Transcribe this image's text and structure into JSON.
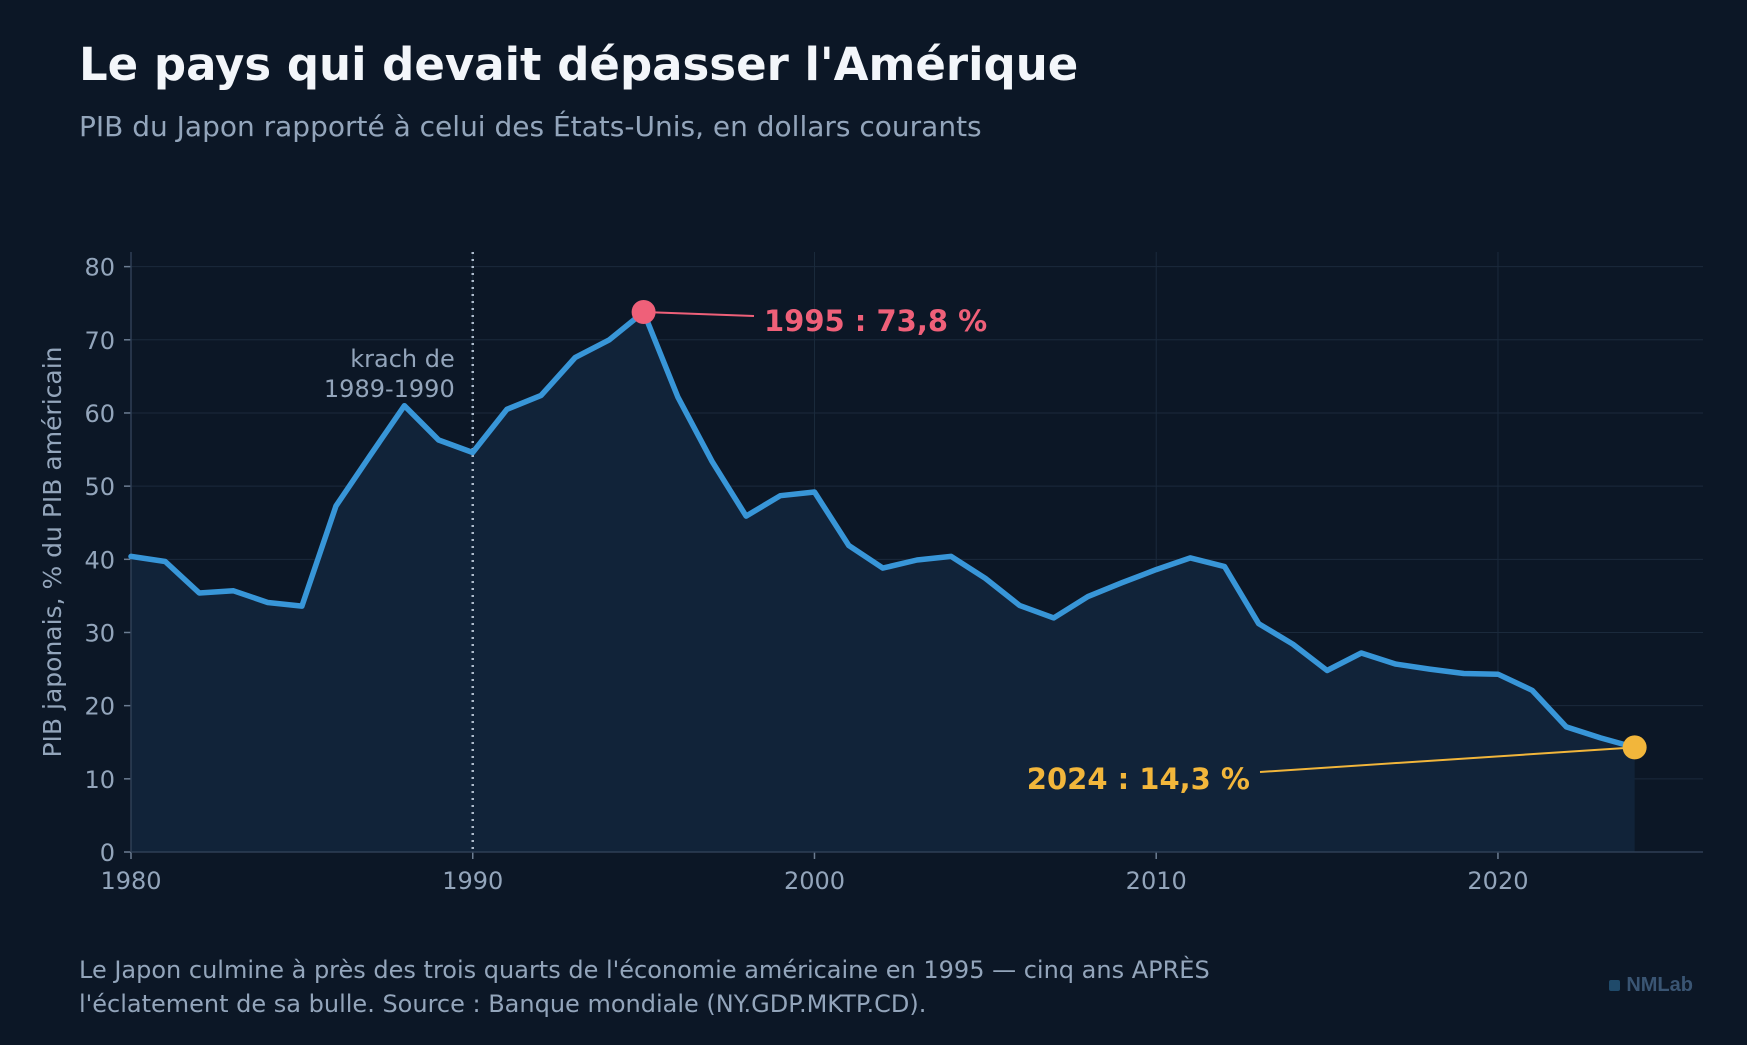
{
  "header": {
    "title": "Le pays qui devait dépasser l'Amérique",
    "subtitle": "PIB du Japon rapporté à celui des États-Unis, en dollars courants"
  },
  "footer": {
    "caption_line1": "Le Japon culmine à près des trois quarts de l'économie américaine en 1995 — cinq ans APRÈS",
    "caption_line2": "l'éclatement de sa bulle. Source : Banque mondiale (NY.GDP.MKTP.CD).",
    "brand": "NMLab"
  },
  "colors": {
    "background": "#0c1726",
    "line": "#3896d8",
    "area": "#112339",
    "grid": "#1b2a3c",
    "peak": "#ef6079",
    "latest": "#f2b63b",
    "text_muted": "#93a5bb"
  },
  "chart_data": {
    "type": "line",
    "ylabel": "PIB japonais, % du PIB américain",
    "xlabel": "",
    "xlim": [
      1980,
      2026
    ],
    "ylim": [
      0,
      82
    ],
    "x_ticks": [
      1980,
      1990,
      2000,
      2010,
      2020
    ],
    "y_ticks": [
      0,
      10,
      20,
      30,
      40,
      50,
      60,
      70,
      80
    ],
    "grid": true,
    "series": [
      {
        "x": [
          1980,
          1981,
          1982,
          1983,
          1984,
          1985,
          1986,
          1987,
          1988,
          1989,
          1990,
          1991,
          1992,
          1993,
          1994,
          1995,
          1996,
          1997,
          1998,
          1999,
          2000,
          2001,
          2002,
          2003,
          2004,
          2005,
          2006,
          2007,
          2008,
          2009,
          2010,
          2011,
          2012,
          2013,
          2014,
          2015,
          2016,
          2017,
          2018,
          2019,
          2020,
          2021,
          2022,
          2023,
          2024
        ],
        "y": [
          40.4,
          39.7,
          35.4,
          35.7,
          34.1,
          33.6,
          47.3,
          54.2,
          61.0,
          56.3,
          54.6,
          60.5,
          62.4,
          67.6,
          70.0,
          73.8,
          62.2,
          53.4,
          45.9,
          48.7,
          49.2,
          41.9,
          38.8,
          39.9,
          40.4,
          37.4,
          33.7,
          32.0,
          34.9,
          36.8,
          38.6,
          40.2,
          39.0,
          31.2,
          28.4,
          24.8,
          27.2,
          25.7,
          25.0,
          24.4,
          24.3,
          22.1,
          17.1,
          15.6,
          14.3
        ]
      }
    ],
    "annotations": [
      {
        "id": "crash",
        "x": 1990,
        "line1": "krach de",
        "line2": "1989-1990"
      },
      {
        "id": "peak",
        "x": 1995,
        "y": 73.8,
        "label": "1995 : 73,8 %"
      },
      {
        "id": "latest",
        "x": 2024,
        "y": 14.3,
        "label": "2024 : 14,3 %"
      }
    ]
  }
}
